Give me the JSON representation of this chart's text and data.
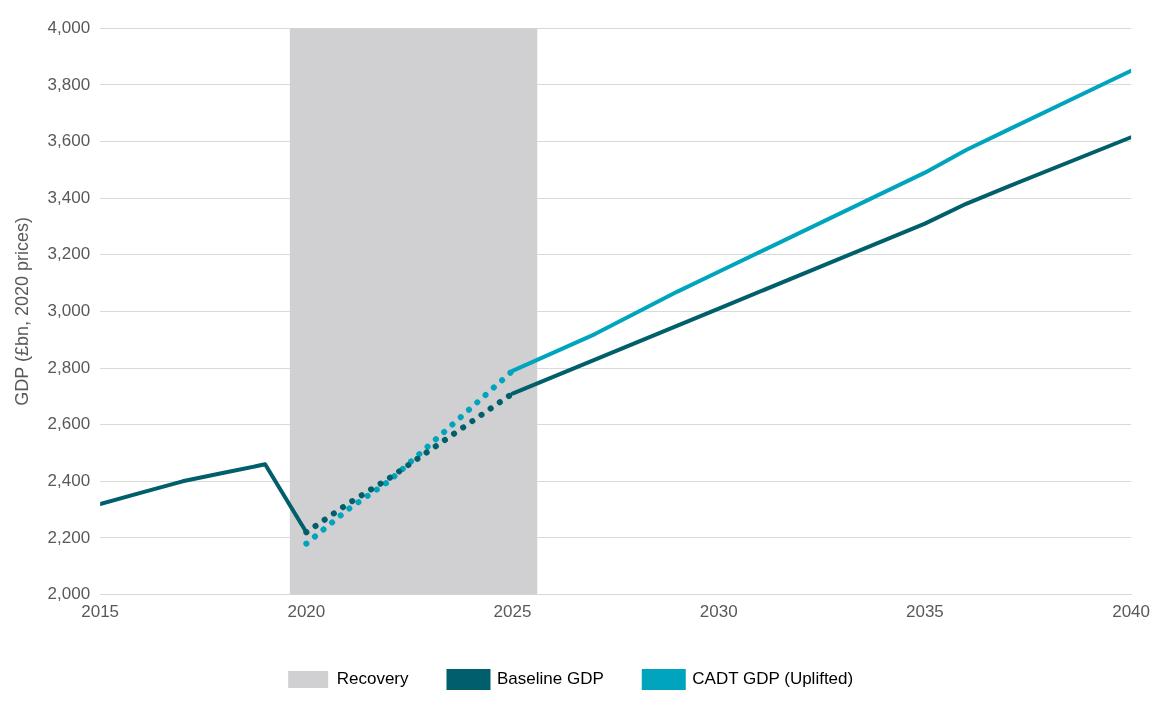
{
  "chart_data": {
    "type": "line",
    "ylabel": "GDP (£bn, 2020 prices)",
    "xlim": [
      2015,
      2040
    ],
    "xticks": [
      2015,
      2020,
      2025,
      2030,
      2035,
      2040
    ],
    "ylim": [
      2000,
      4000
    ],
    "yticks": [
      {
        "value": 2000,
        "label": "2,000"
      },
      {
        "value": 2200,
        "label": "2,200"
      },
      {
        "value": 2400,
        "label": "2,400"
      },
      {
        "value": 2600,
        "label": "2,600"
      },
      {
        "value": 2800,
        "label": "2,800"
      },
      {
        "value": 3000,
        "label": "3,000"
      },
      {
        "value": 3200,
        "label": "3,200"
      },
      {
        "value": 3400,
        "label": "3,400"
      },
      {
        "value": 3600,
        "label": "3,600"
      },
      {
        "value": 3800,
        "label": "3,800"
      },
      {
        "value": 4000,
        "label": "4,000"
      }
    ],
    "grid": "y",
    "legend": "bottom",
    "line_style": "solid",
    "marker": "none",
    "bands": [
      {
        "axis": "x",
        "from": 2019.6,
        "to": 2025.6,
        "label": "Recovery",
        "color": "#d0d0d2"
      }
    ],
    "series": [
      {
        "name": "Baseline GDP",
        "color": "#005f6b",
        "x": [
          2015,
          2016,
          2017,
          2018,
          2019,
          2020
        ],
        "values": [
          2320,
          2360,
          2400,
          2430,
          2460,
          2220
        ]
      },
      {
        "color": "#005f6b",
        "x": [
          2025,
          2027,
          2029,
          2030,
          2035,
          2036,
          2037,
          2040
        ],
        "values": [
          2710,
          2830,
          2950,
          3010,
          3310,
          3380,
          3440,
          3615
        ]
      },
      {
        "color": "#005f6b",
        "line_style": "dotted",
        "x": [
          2020,
          2021,
          2022,
          2023,
          2024,
          2025
        ],
        "values": [
          2220,
          2320,
          2410,
          2510,
          2610,
          2710
        ]
      },
      {
        "color": "#00a5bd",
        "line_style": "dotted",
        "x": [
          2020,
          2021,
          2022,
          2023,
          2024,
          2025
        ],
        "values": [
          2180,
          2300,
          2400,
          2530,
          2660,
          2790
        ]
      },
      {
        "name": "CADT GDP (Uplifted)",
        "color": "#00a5bd",
        "x": [
          2025,
          2027,
          2029,
          2030,
          2035,
          2036,
          2037,
          2040
        ],
        "values": [
          2790,
          2920,
          3070,
          3140,
          3490,
          3570,
          3640,
          3850
        ]
      }
    ]
  }
}
